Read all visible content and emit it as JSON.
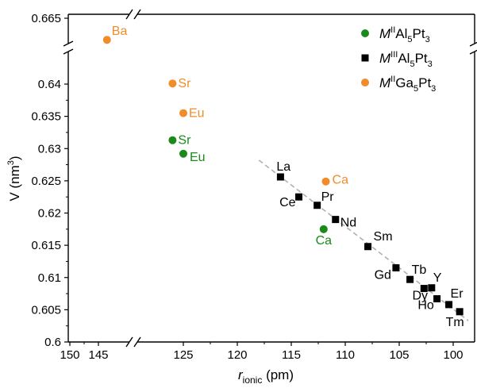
{
  "chart_data": {
    "type": "scatter",
    "title": "",
    "xlabel": {
      "main": "r",
      "sub": "ionic",
      "unit": " (pm)"
    },
    "ylabel": {
      "main": "V (nm",
      "sup": "3",
      "end": ")"
    },
    "x_axis": {
      "reversed": true,
      "broken": true,
      "left_segment_ticks": [
        150,
        145
      ],
      "right_segment_ticks": [
        125,
        120,
        115,
        110,
        105,
        100
      ]
    },
    "y_axis": {
      "broken": true,
      "top_segment_ticks": [
        0.665
      ],
      "main_ticks": [
        0.6,
        0.605,
        0.61,
        0.615,
        0.62,
        0.625,
        0.63,
        0.635,
        0.64
      ],
      "main_range": [
        0.6,
        0.643
      ]
    },
    "grid": false,
    "legend_position": "top-right",
    "colors": {
      "green": "#1a8a1a",
      "black": "#000000",
      "orange": "#f28c28",
      "fit": "#b0b0b0"
    },
    "series": [
      {
        "name": {
          "base": "M",
          "sup": "II",
          "rest": [
            [
              "Al",
              ""
            ],
            [
              "5",
              "sub"
            ],
            [
              "Pt",
              ""
            ],
            [
              "3",
              "sub"
            ]
          ]
        },
        "marker": "circle",
        "color": "green",
        "points": [
          {
            "x": 126.0,
            "y": 0.6313,
            "label": "Sr"
          },
          {
            "x": 125.0,
            "y": 0.6292,
            "label": "Eu"
          },
          {
            "x": 112.0,
            "y": 0.6175,
            "label": "Ca"
          }
        ]
      },
      {
        "name": {
          "base": "M",
          "sup": "III",
          "rest": [
            [
              "Al",
              ""
            ],
            [
              "5",
              "sub"
            ],
            [
              "Pt",
              ""
            ],
            [
              "3",
              "sub"
            ]
          ]
        },
        "marker": "square",
        "color": "black",
        "points": [
          {
            "x": 116.0,
            "y": 0.6256,
            "label": "La"
          },
          {
            "x": 114.3,
            "y": 0.6225,
            "label": "Ce"
          },
          {
            "x": 112.6,
            "y": 0.6212,
            "label": "Pr"
          },
          {
            "x": 110.9,
            "y": 0.619,
            "label": "Nd"
          },
          {
            "x": 107.9,
            "y": 0.6148,
            "label": "Sm"
          },
          {
            "x": 105.3,
            "y": 0.6115,
            "label": "Gd"
          },
          {
            "x": 104.0,
            "y": 0.6097,
            "label": "Tb"
          },
          {
            "x": 102.7,
            "y": 0.6083,
            "label": "Dy"
          },
          {
            "x": 102.0,
            "y": 0.6084,
            "label": "Y"
          },
          {
            "x": 101.5,
            "y": 0.6067,
            "label": "Ho"
          },
          {
            "x": 100.4,
            "y": 0.6058,
            "label": "Er"
          },
          {
            "x": 99.4,
            "y": 0.6047,
            "label": "Tm"
          }
        ]
      },
      {
        "name": {
          "base": "M",
          "sup": "II",
          "rest": [
            [
              "Ga",
              ""
            ],
            [
              "5",
              "sub"
            ],
            [
              "Pt",
              ""
            ],
            [
              "3",
              "sub"
            ]
          ]
        },
        "marker": "circle",
        "color": "orange",
        "points": [
          {
            "x": 143.5,
            "y": 0.6616,
            "label": "Ba"
          },
          {
            "x": 126.0,
            "y": 0.6401,
            "label": "Sr"
          },
          {
            "x": 125.0,
            "y": 0.6355,
            "label": "Eu"
          },
          {
            "x": 111.8,
            "y": 0.6249,
            "label": "Ca"
          }
        ]
      }
    ],
    "fit_line": {
      "style": "dashed",
      "from": {
        "x": 118.0,
        "y": 0.6282
      },
      "to": {
        "x": 98.6,
        "y": 0.6033
      }
    }
  }
}
